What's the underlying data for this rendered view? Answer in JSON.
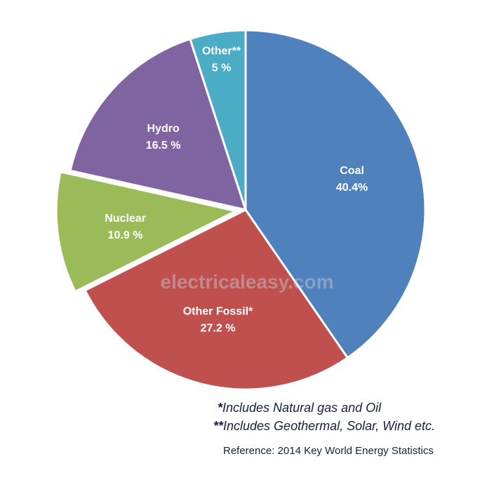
{
  "chart_data": {
    "type": "pie",
    "slices": [
      {
        "name": "Coal",
        "value": 40.4,
        "label": "Coal",
        "value_label": "40.4%",
        "color": "#4f81bd",
        "exploded": false
      },
      {
        "name": "Other Fossil*",
        "value": 27.2,
        "label": "Other Fossil*",
        "value_label": "27.2 %",
        "color": "#c0504d",
        "exploded": false
      },
      {
        "name": "Nuclear",
        "value": 10.9,
        "label": "Nuclear",
        "value_label": "10.9 %",
        "color": "#9bbb59",
        "exploded": true
      },
      {
        "name": "Hydro",
        "value": 16.5,
        "label": "Hydro",
        "value_label": "16.5 %",
        "color": "#8064a2",
        "exploded": false
      },
      {
        "name": "Other**",
        "value": 5,
        "label": "Other**",
        "value_label": "5 %",
        "color": "#4bacc6",
        "exploded": false
      }
    ],
    "start_angle": "12 o'clock",
    "direction": "clockwise",
    "legend": "none",
    "slice_border_color": "#ffffff"
  },
  "watermark": "electricaleasy.com",
  "notes": {
    "note1_mark": "*",
    "note1_text": "Includes Natural gas and Oil",
    "note2_mark": "**",
    "note2_text": "Includes Geothermal, Solar, Wind etc."
  },
  "reference": "Reference: 2014 Key World Energy Statistics",
  "colors": {
    "note_text": "#14213d",
    "watermark": "#c9c9d6"
  }
}
